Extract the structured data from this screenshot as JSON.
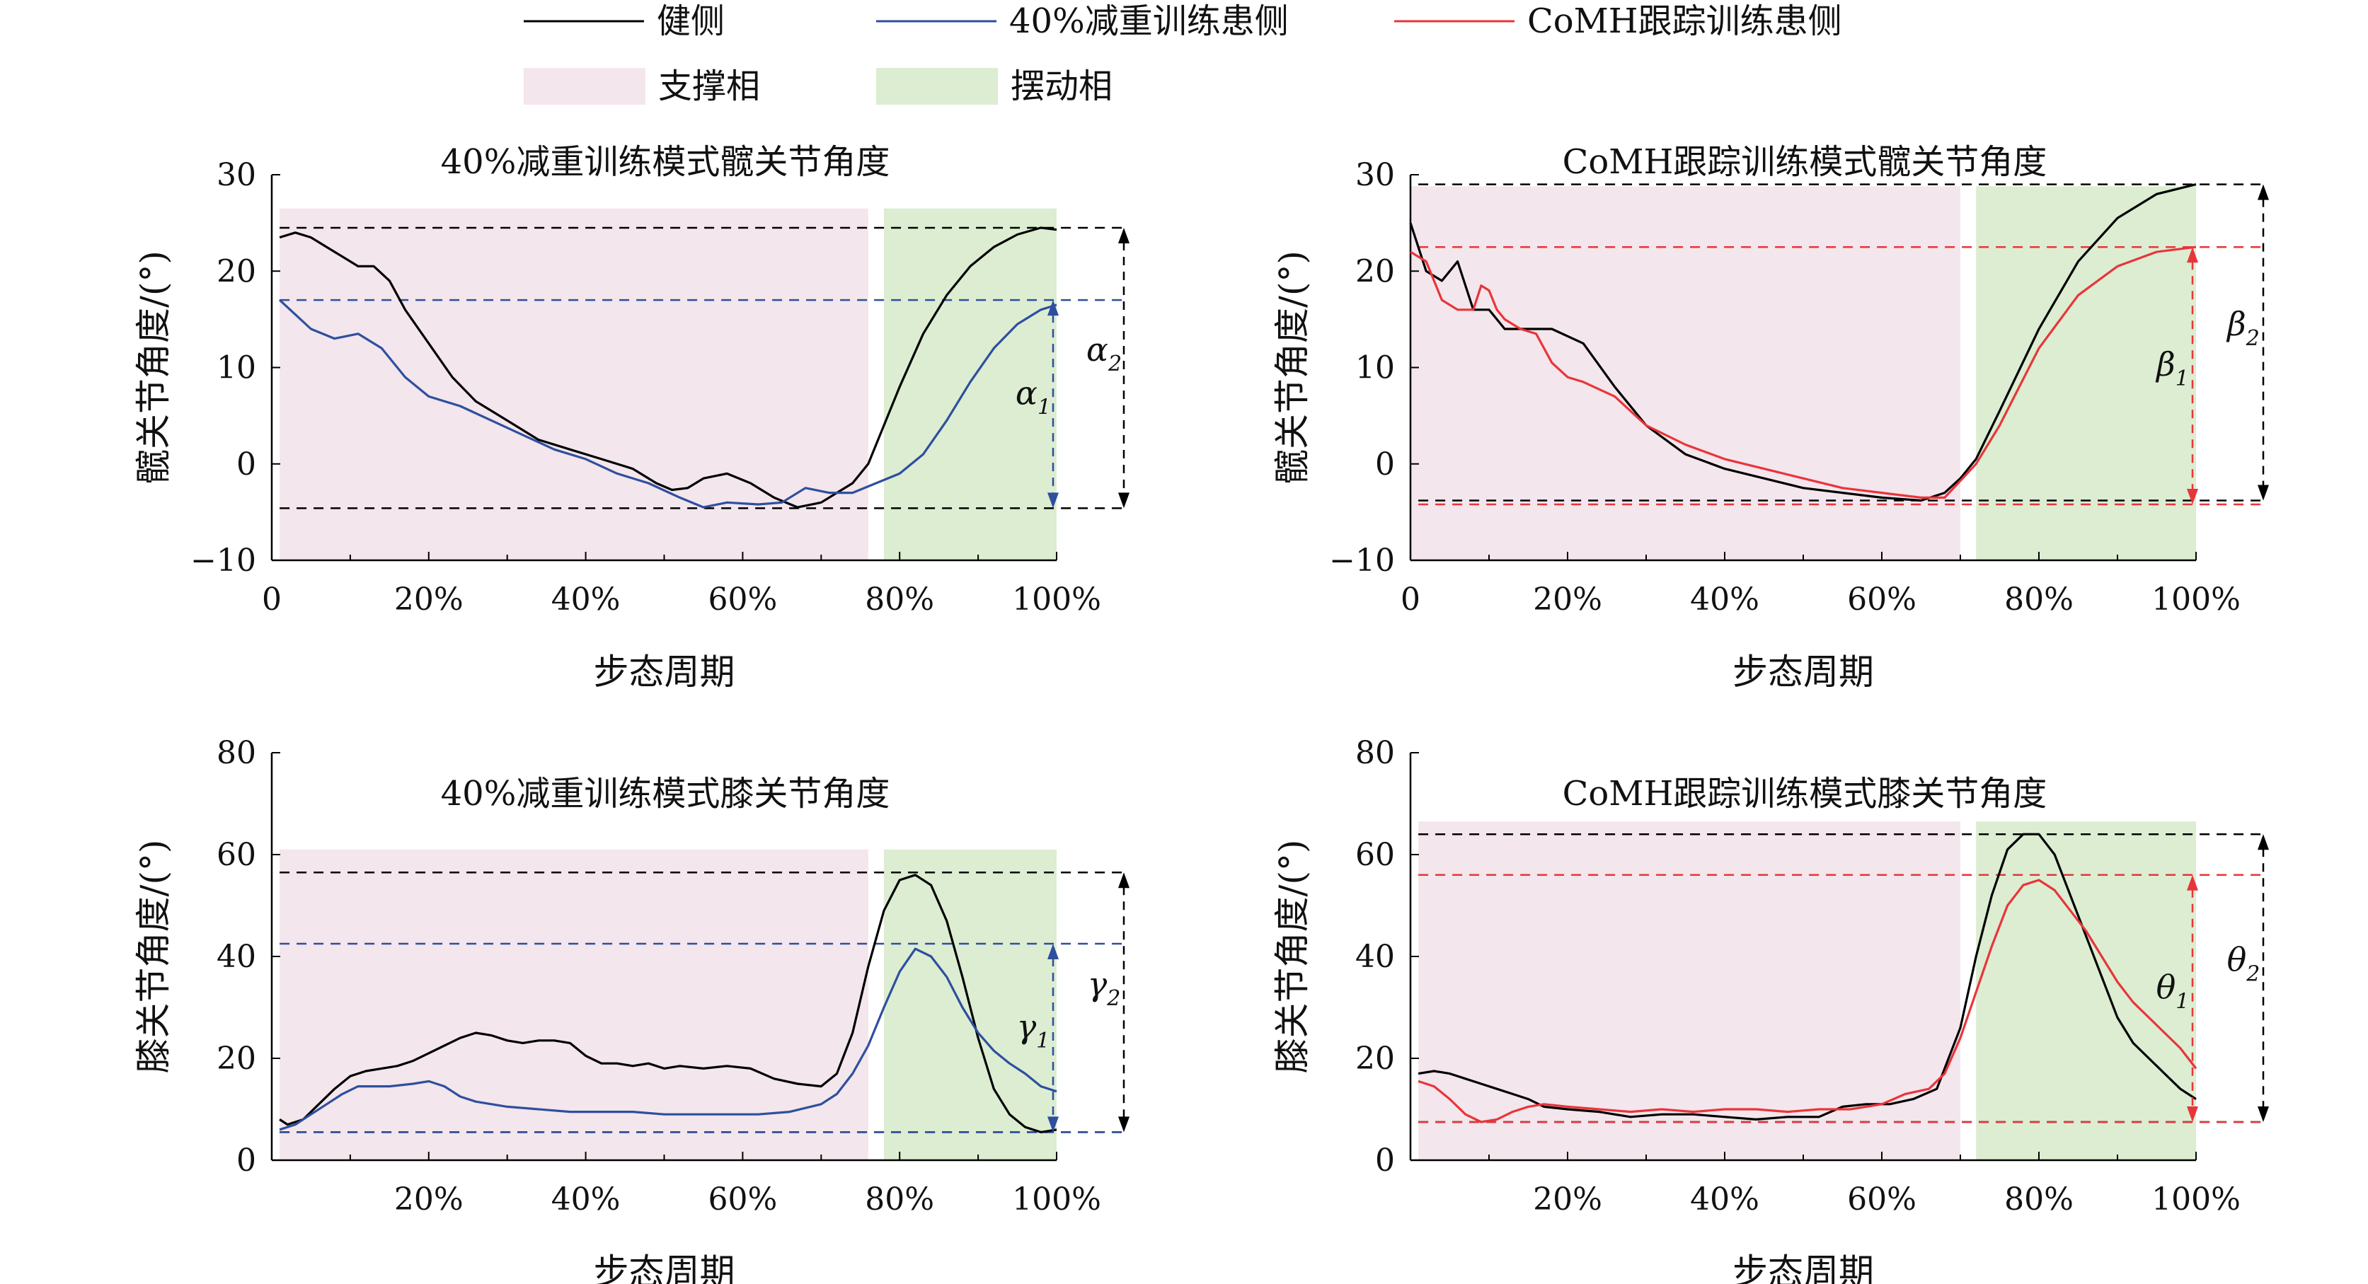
{
  "legend": {
    "lines": [
      {
        "label": "健侧",
        "color": "#000000"
      },
      {
        "label": "40%减重训练患侧",
        "color": "#2e4f9e"
      },
      {
        "label": "CoMH跟踪训练患侧",
        "color": "#e8353a"
      }
    ],
    "patches": [
      {
        "label": "支撑相",
        "color": "#f3e6ec"
      },
      {
        "label": "摆动相",
        "color": "#dcedd2"
      }
    ]
  },
  "colors": {
    "healthy": "#000000",
    "bws": "#2e4f9e",
    "comh": "#e8353a",
    "stance": "#f3e6ec",
    "swing": "#dcedd2"
  },
  "chart_data": [
    {
      "type": "line",
      "title": "40%减重训练模式髋关节角度",
      "xlabel": "步态周期",
      "ylabel": "髋关节角度/(°)",
      "xlim": [
        0,
        100
      ],
      "ylim": [
        -10,
        30
      ],
      "xticks": [
        "0",
        "20%",
        "40%",
        "60%",
        "80%",
        "100%"
      ],
      "yticks": [
        "−10",
        "0",
        "10",
        "20",
        "30"
      ],
      "phases": [
        {
          "name": "支撑相",
          "from": 1,
          "to": 76
        },
        {
          "name": "摆动相",
          "from": 78,
          "to": 100
        }
      ],
      "series": [
        {
          "name": "健侧",
          "color": "#000000",
          "x": [
            1,
            3,
            5,
            7,
            9,
            11,
            13,
            15,
            17,
            20,
            23,
            26,
            30,
            34,
            38,
            42,
            46,
            49,
            51,
            53,
            55,
            58,
            61,
            64,
            67,
            70,
            72,
            74,
            76,
            78,
            80,
            83,
            86,
            89,
            92,
            95,
            98,
            100
          ],
          "y": [
            23.5,
            24,
            23.5,
            22.5,
            21.5,
            20.5,
            20.5,
            19,
            16,
            12.5,
            9,
            6.5,
            4.5,
            2.5,
            1.5,
            0.5,
            -0.5,
            -2,
            -2.7,
            -2.5,
            -1.5,
            -1,
            -2,
            -3.5,
            -4.5,
            -4,
            -3,
            -2,
            0,
            4,
            8,
            13.5,
            17.5,
            20.5,
            22.5,
            23.8,
            24.5,
            24.3
          ]
        },
        {
          "name": "40%减重训练患侧",
          "color": "#2e4f9e",
          "x": [
            1,
            3,
            5,
            8,
            11,
            14,
            17,
            20,
            24,
            28,
            32,
            36,
            40,
            44,
            48,
            52,
            55,
            58,
            62,
            65,
            68,
            71,
            74,
            77,
            80,
            83,
            86,
            89,
            92,
            95,
            98,
            100
          ],
          "y": [
            17,
            15.5,
            14,
            13,
            13.5,
            12,
            9,
            7,
            6,
            4.5,
            3,
            1.5,
            0.5,
            -1,
            -2,
            -3.5,
            -4.5,
            -4,
            -4.2,
            -4,
            -2.5,
            -3,
            -3,
            -2,
            -1,
            1,
            4.5,
            8.5,
            12,
            14.5,
            16,
            16.5
          ]
        }
      ],
      "annotations": [
        {
          "text": "α1",
          "from": -4.6,
          "to": 17
        },
        {
          "text": "α2",
          "from": -4.6,
          "to": 24.5
        }
      ],
      "reference_lines": [
        {
          "color": "black",
          "y": [
            24.5,
            -4.6
          ]
        },
        {
          "color": "blue",
          "y": [
            17
          ]
        }
      ]
    },
    {
      "type": "line",
      "title": "CoMH跟踪训练模式髋关节角度",
      "xlabel": "步态周期",
      "ylabel": "髋关节角度/(°)",
      "xlim": [
        0,
        100
      ],
      "ylim": [
        -10,
        30
      ],
      "xticks": [
        "0",
        "20%",
        "40%",
        "60%",
        "80%",
        "100%"
      ],
      "yticks": [
        "−10",
        "0",
        "10",
        "20",
        "30"
      ],
      "phases": [
        {
          "name": "支撑相",
          "from": 0,
          "to": 70
        },
        {
          "name": "摆动相",
          "from": 72,
          "to": 100
        }
      ],
      "series": [
        {
          "name": "健侧",
          "color": "#000000",
          "x": [
            0,
            2,
            4,
            6,
            8,
            10,
            12,
            14,
            18,
            22,
            26,
            30,
            35,
            40,
            45,
            50,
            55,
            60,
            65,
            68,
            70,
            72,
            75,
            80,
            85,
            90,
            95,
            100
          ],
          "y": [
            25,
            20,
            19,
            21,
            16,
            16,
            14,
            14,
            14,
            12.5,
            8,
            4,
            1,
            -0.5,
            -1.5,
            -2.5,
            -3,
            -3.5,
            -3.8,
            -3,
            -1.5,
            0.5,
            5.5,
            14,
            21,
            25.5,
            28,
            29
          ]
        },
        {
          "name": "CoMH跟踪训练患侧",
          "color": "#e8353a",
          "x": [
            0,
            2,
            4,
            6,
            8,
            9,
            10,
            11,
            12,
            14,
            16,
            18,
            20,
            22,
            26,
            30,
            35,
            40,
            45,
            50,
            55,
            60,
            65,
            68,
            72,
            75,
            80,
            85,
            90,
            95,
            100
          ],
          "y": [
            22,
            21,
            17,
            16,
            16,
            18.5,
            18,
            16,
            15,
            14,
            13.5,
            10.5,
            9,
            8.5,
            7,
            4,
            2,
            0.5,
            -0.5,
            -1.5,
            -2.5,
            -3,
            -3.5,
            -3.5,
            0,
            4,
            12,
            17.5,
            20.5,
            22,
            22.5
          ]
        }
      ],
      "annotations": [
        {
          "text": "β1",
          "from": -4.2,
          "to": 22.5
        },
        {
          "text": "β2",
          "from": -3.8,
          "to": 29
        }
      ],
      "reference_lines": [
        {
          "color": "black",
          "y": [
            29,
            -3.8
          ]
        },
        {
          "color": "red",
          "y": [
            22.5,
            -4.2
          ]
        }
      ]
    },
    {
      "type": "line",
      "title": "40%减重训练模式膝关节角度",
      "xlabel": "步态周期",
      "ylabel": "膝关节角度/(°)",
      "xlim": [
        0,
        100
      ],
      "ylim": [
        0,
        80
      ],
      "xticks": [
        "20%",
        "40%",
        "60%",
        "80%",
        "100%"
      ],
      "yticks": [
        "0",
        "20",
        "40",
        "60",
        "80"
      ],
      "phases": [
        {
          "name": "支撑相",
          "from": 1,
          "to": 76
        },
        {
          "name": "摆动相",
          "from": 78,
          "to": 100
        }
      ],
      "series": [
        {
          "name": "健侧",
          "color": "#000000",
          "x": [
            1,
            2,
            4,
            6,
            8,
            10,
            12,
            14,
            16,
            18,
            20,
            22,
            24,
            26,
            28,
            30,
            32,
            34,
            36,
            38,
            40,
            42,
            44,
            46,
            48,
            50,
            52,
            55,
            58,
            61,
            64,
            67,
            70,
            72,
            74,
            76,
            78,
            80,
            82,
            84,
            86,
            88,
            90,
            92,
            94,
            96,
            98,
            100
          ],
          "y": [
            8,
            7,
            8,
            11,
            14,
            16.5,
            17.5,
            18,
            18.5,
            19.5,
            21,
            22.5,
            24,
            25,
            24.5,
            23.5,
            23,
            23.5,
            23.5,
            23,
            20.5,
            19,
            19,
            18.5,
            19,
            18,
            18.5,
            18,
            18.5,
            18,
            16,
            15,
            14.5,
            17,
            25,
            38,
            49,
            55,
            56,
            54,
            47,
            36,
            24,
            14,
            9,
            6.5,
            5.5,
            6
          ]
        },
        {
          "name": "40%减重训练患侧",
          "color": "#2e4f9e",
          "x": [
            1,
            3,
            5,
            7,
            9,
            11,
            13,
            15,
            18,
            20,
            22,
            24,
            26,
            28,
            30,
            34,
            38,
            42,
            46,
            50,
            54,
            58,
            62,
            66,
            70,
            72,
            74,
            76,
            78,
            80,
            82,
            84,
            86,
            88,
            90,
            92,
            94,
            96,
            98,
            100
          ],
          "y": [
            6,
            7,
            9,
            11,
            13,
            14.5,
            14.5,
            14.5,
            15,
            15.5,
            14.5,
            12.5,
            11.5,
            11,
            10.5,
            10,
            9.5,
            9.5,
            9.5,
            9,
            9,
            9,
            9,
            9.5,
            11,
            13,
            17,
            22.5,
            30,
            37,
            41.5,
            40,
            36,
            30,
            25,
            21.5,
            19,
            17,
            14.5,
            13.5
          ]
        }
      ],
      "annotations": [
        {
          "text": "γ1",
          "from": 5.5,
          "to": 42.5
        },
        {
          "text": "γ2",
          "from": 5.5,
          "to": 56.5
        }
      ],
      "reference_lines": [
        {
          "color": "black",
          "y": [
            56.5,
            5.5
          ]
        },
        {
          "color": "blue",
          "y": [
            42.5,
            5.5
          ]
        }
      ]
    },
    {
      "type": "line",
      "title": "CoMH跟踪训练模式膝关节角度",
      "xlabel": "步态周期",
      "ylabel": "膝关节角度/(°)",
      "xlim": [
        0,
        100
      ],
      "ylim": [
        0,
        80
      ],
      "xticks": [
        "20%",
        "40%",
        "60%",
        "80%",
        "100%"
      ],
      "yticks": [
        "0",
        "20",
        "40",
        "60",
        "80"
      ],
      "phases": [
        {
          "name": "支撑相",
          "from": 1,
          "to": 70
        },
        {
          "name": "摆动相",
          "from": 72,
          "to": 100
        }
      ],
      "series": [
        {
          "name": "健侧",
          "color": "#000000",
          "x": [
            1,
            3,
            5,
            7,
            9,
            11,
            13,
            15,
            17,
            20,
            24,
            28,
            32,
            36,
            40,
            44,
            48,
            52,
            55,
            58,
            61,
            64,
            67,
            70,
            72,
            74,
            76,
            78,
            80,
            82,
            84,
            86,
            88,
            90,
            92,
            94,
            96,
            98,
            100
          ],
          "y": [
            17,
            17.5,
            17,
            16,
            15,
            14,
            13,
            12,
            10.5,
            10,
            9.5,
            8.5,
            9,
            9,
            8.5,
            8,
            8.5,
            8.5,
            10.5,
            11,
            11,
            12,
            14,
            26,
            40,
            52,
            61,
            64,
            64,
            60,
            52,
            44,
            36,
            28,
            23,
            20,
            17,
            14,
            12
          ]
        },
        {
          "name": "CoMH跟踪训练患侧",
          "color": "#e8353a",
          "x": [
            1,
            3,
            5,
            7,
            9,
            11,
            13,
            15,
            17,
            20,
            24,
            28,
            32,
            36,
            40,
            44,
            48,
            52,
            56,
            60,
            63,
            66,
            68,
            70,
            72,
            74,
            76,
            78,
            80,
            82,
            84,
            86,
            88,
            90,
            92,
            94,
            96,
            98,
            100
          ],
          "y": [
            15.5,
            14.5,
            12,
            9,
            7.5,
            8,
            9.5,
            10.5,
            11,
            10.5,
            10,
            9.5,
            10,
            9.5,
            10,
            10,
            9.5,
            10,
            10,
            11,
            13,
            14,
            17,
            24,
            33,
            42,
            50,
            54,
            55,
            53,
            49,
            45,
            40,
            35,
            31,
            28,
            25,
            22,
            18
          ]
        }
      ],
      "annotations": [
        {
          "text": "θ1",
          "from": 7.5,
          "to": 56
        },
        {
          "text": "θ2",
          "from": 7.5,
          "to": 64
        }
      ],
      "reference_lines": [
        {
          "color": "black",
          "y": [
            64,
            7.5
          ]
        },
        {
          "color": "red",
          "y": [
            56,
            7.5
          ]
        }
      ]
    }
  ]
}
